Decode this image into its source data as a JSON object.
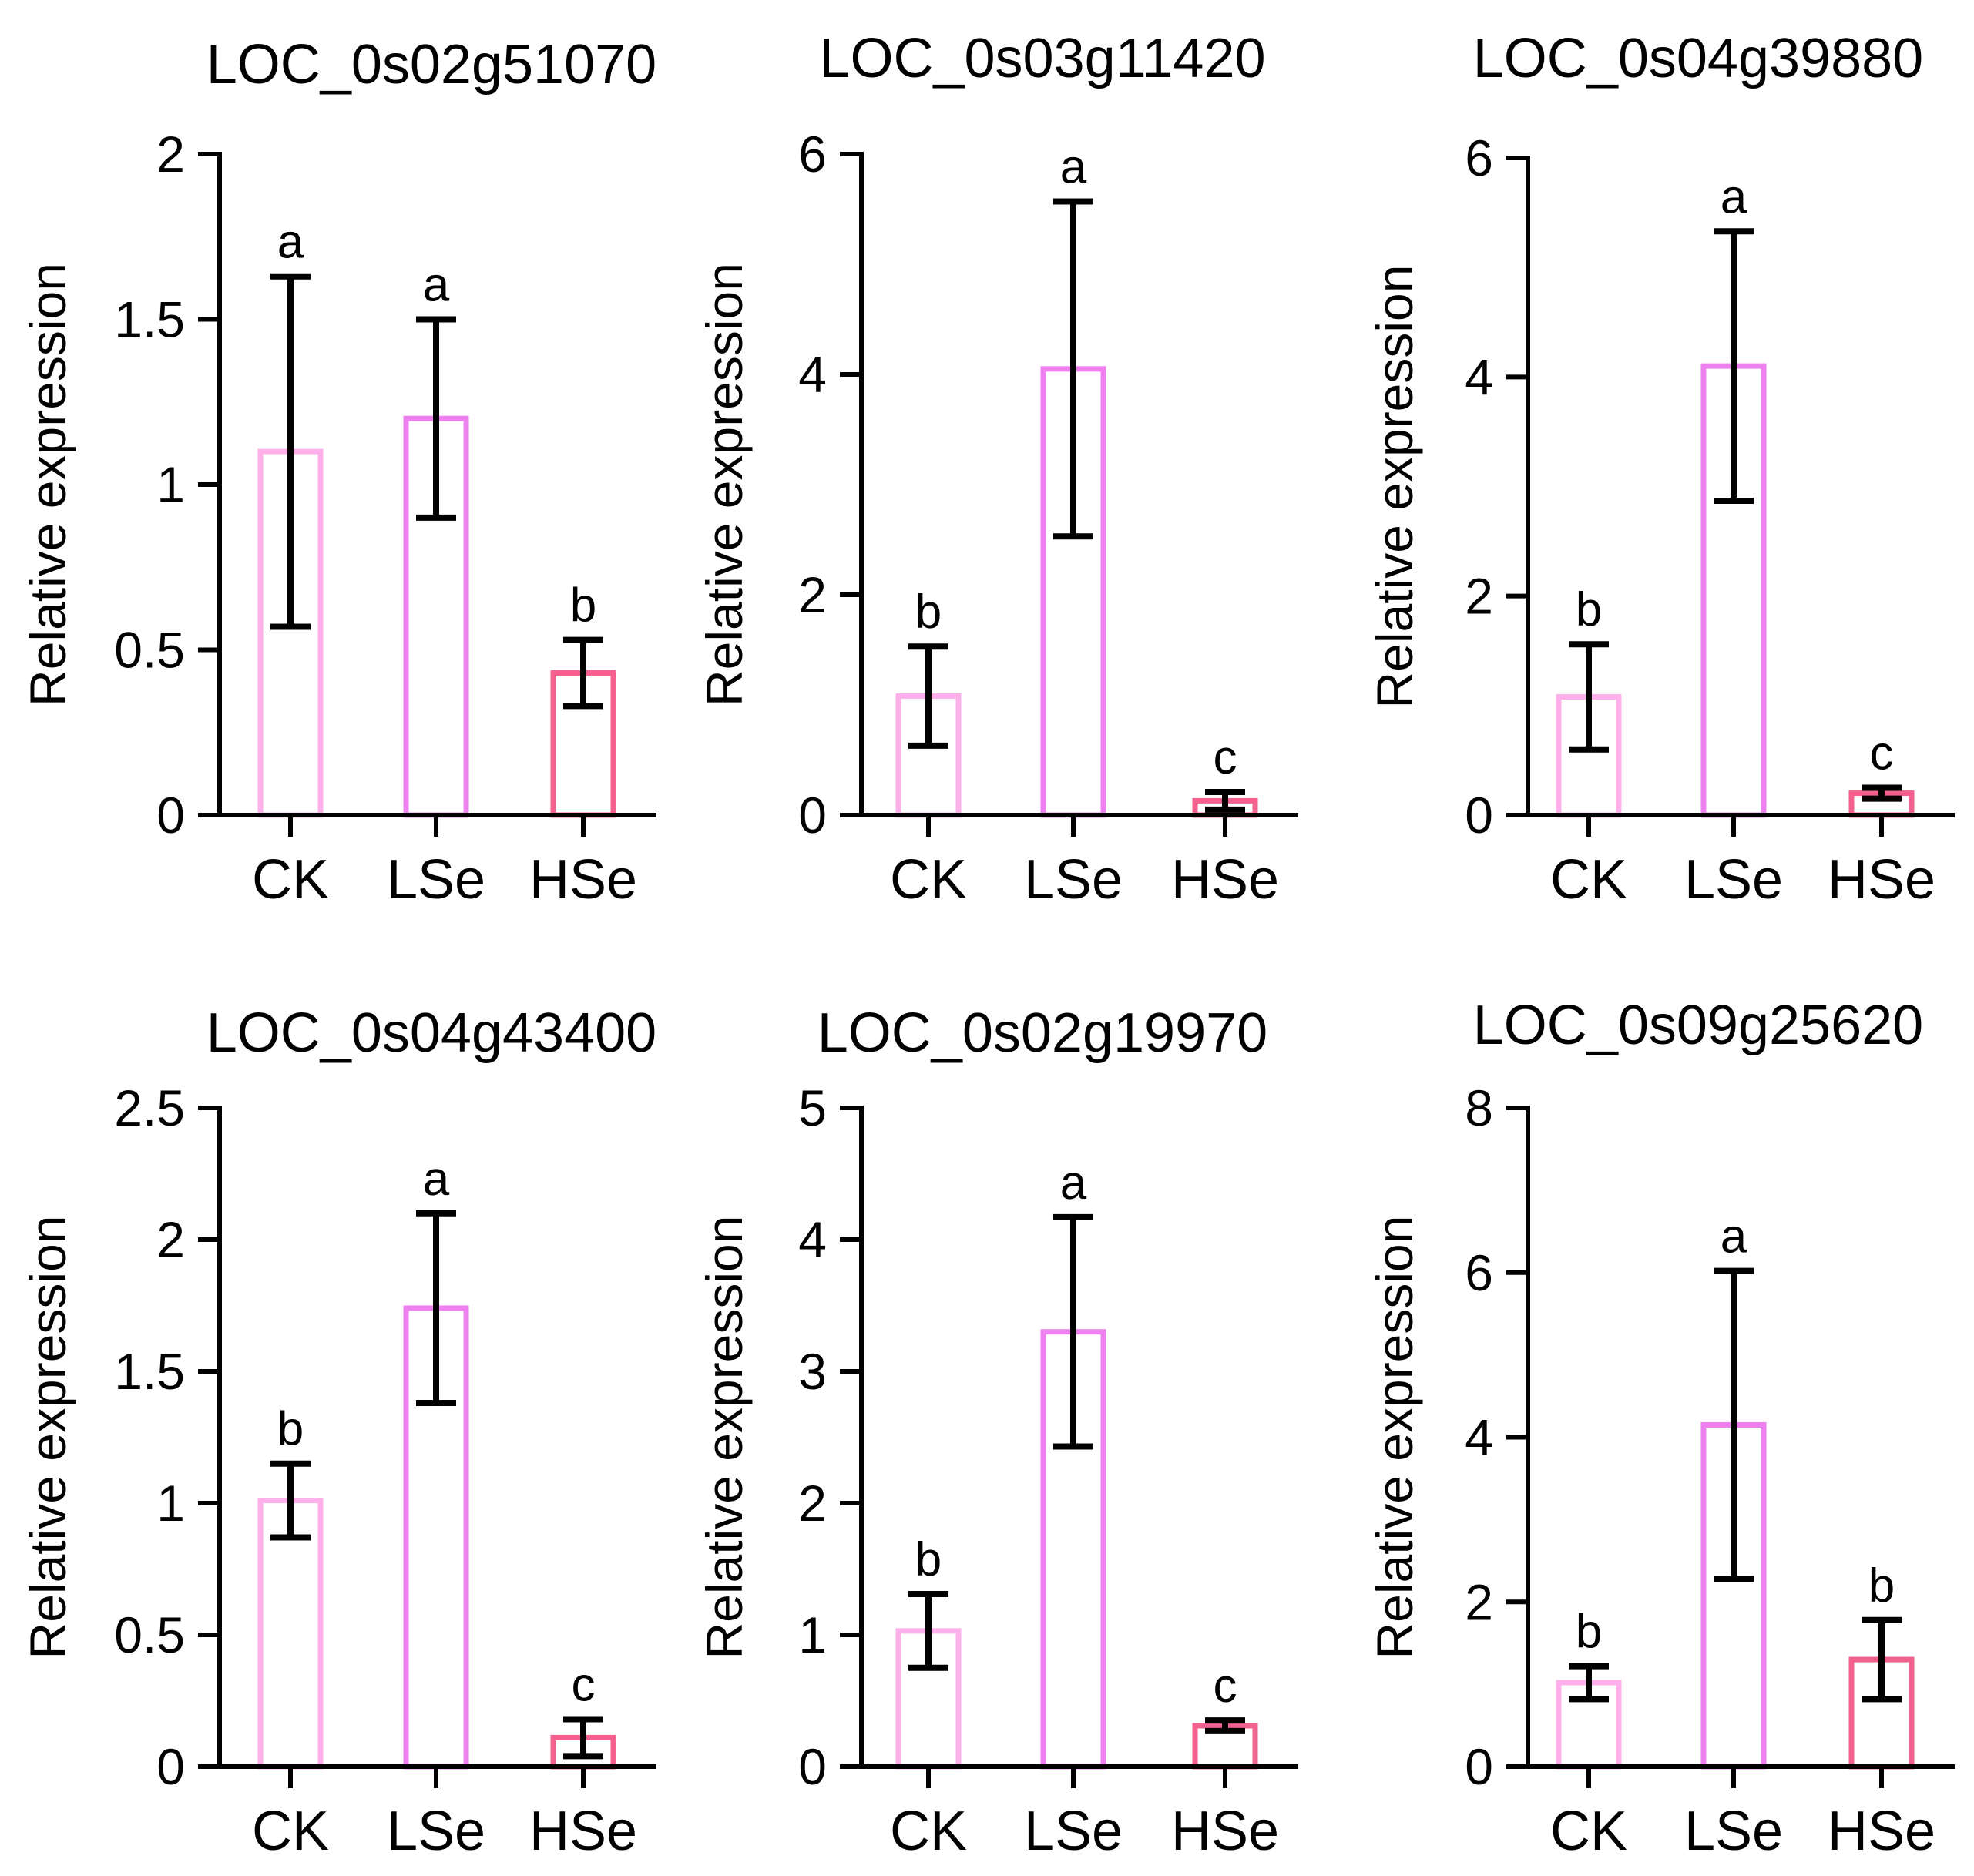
{
  "figure": {
    "panel_count": 6
  },
  "colors": {
    "CK": "#fdb0ea",
    "LSe": "#ee80f0",
    "HSe": "#f3628f",
    "axis": "#000000",
    "error": "#000000"
  },
  "chart_data": [
    {
      "type": "bar",
      "title": "LOC_0s02g51070",
      "ylabel": "Relative expression",
      "xlabel": "",
      "categories": [
        "CK",
        "LSe",
        "HSe"
      ],
      "values": [
        1.1,
        1.2,
        0.43
      ],
      "errors": [
        0.53,
        0.3,
        0.1
      ],
      "significance": [
        "a",
        "a",
        "b"
      ],
      "ylim": [
        0,
        2
      ],
      "yticks": [
        "0",
        "0.5",
        "1",
        "1.5",
        "2"
      ]
    },
    {
      "type": "bar",
      "title": "LOC_0s03g11420",
      "ylabel": "Relative expression",
      "xlabel": "",
      "categories": [
        "CK",
        "LSe",
        "HSe"
      ],
      "values": [
        1.08,
        4.05,
        0.13
      ],
      "errors": [
        0.45,
        1.52,
        0.08
      ],
      "significance": [
        "b",
        "a",
        "c"
      ],
      "ylim": [
        0,
        6
      ],
      "yticks": [
        "0",
        "2",
        "4",
        "6"
      ]
    },
    {
      "type": "bar",
      "title": "LOC_0s04g39880",
      "ylabel": "Relative expression",
      "xlabel": "",
      "categories": [
        "CK",
        "LSe",
        "HSe"
      ],
      "values": [
        1.08,
        4.1,
        0.2
      ],
      "errors": [
        0.48,
        1.23,
        0.05
      ],
      "significance": [
        "b",
        "a",
        "c"
      ],
      "ylim": [
        0,
        6
      ],
      "yticks": [
        "0",
        "2",
        "4",
        "6"
      ]
    },
    {
      "type": "bar",
      "title": "LOC_0s04g43400",
      "ylabel": "Relative expression",
      "xlabel": "",
      "categories": [
        "CK",
        "LSe",
        "HSe"
      ],
      "values": [
        1.01,
        1.74,
        0.11
      ],
      "errors": [
        0.14,
        0.36,
        0.07
      ],
      "significance": [
        "b",
        "a",
        "c"
      ],
      "ylim": [
        0,
        2.5
      ],
      "yticks": [
        "0",
        "0.5",
        "1",
        "1.5",
        "2",
        "2.5"
      ]
    },
    {
      "type": "bar",
      "title": "LOC_0s02g19970",
      "ylabel": "Relative expression",
      "xlabel": "",
      "categories": [
        "CK",
        "LSe",
        "HSe"
      ],
      "values": [
        1.03,
        3.3,
        0.31
      ],
      "errors": [
        0.28,
        0.87,
        0.04
      ],
      "significance": [
        "b",
        "a",
        "c"
      ],
      "ylim": [
        0,
        5
      ],
      "yticks": [
        "0",
        "1",
        "2",
        "3",
        "4",
        "5"
      ]
    },
    {
      "type": "bar",
      "title": "LOC_0s09g25620",
      "ylabel": "Relative expression",
      "xlabel": "",
      "categories": [
        "CK",
        "LSe",
        "HSe"
      ],
      "values": [
        1.02,
        4.15,
        1.3
      ],
      "errors": [
        0.2,
        1.87,
        0.48
      ],
      "significance": [
        "b",
        "a",
        "b"
      ],
      "ylim": [
        0,
        8
      ],
      "yticks": [
        "0",
        "2",
        "4",
        "6",
        "8"
      ]
    }
  ]
}
